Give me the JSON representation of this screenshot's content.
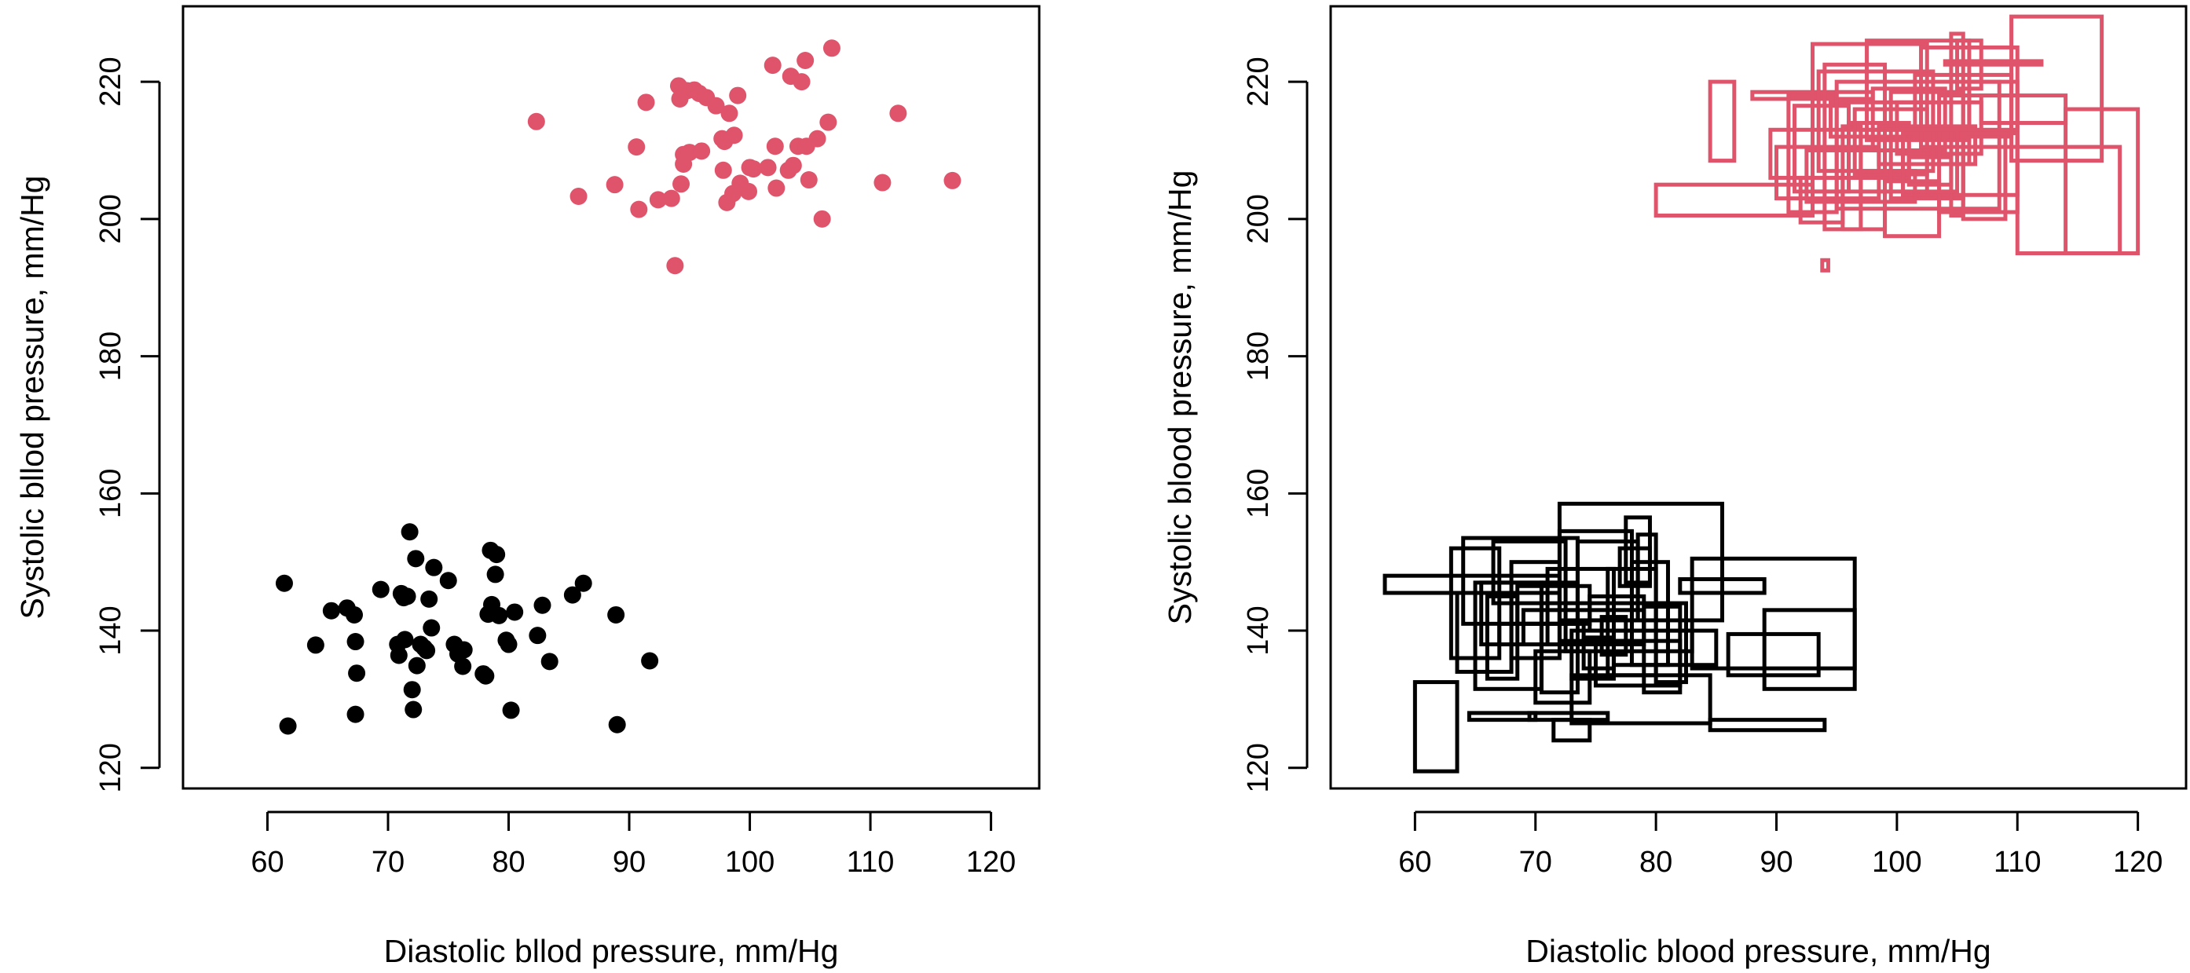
{
  "colors": {
    "black": "#000000",
    "red": "#DF536B"
  },
  "chart_data": [
    {
      "type": "scatter",
      "title": "",
      "xlabel": "Diastolic bllod pressure, mm/Hg",
      "ylabel": "Systolic bllod pressure, mm/Hg",
      "xlim": [
        53,
        124
      ],
      "ylim": [
        117,
        231
      ],
      "xticks": [
        60,
        70,
        80,
        90,
        100,
        110,
        120
      ],
      "yticks": [
        120,
        140,
        160,
        180,
        200,
        220
      ],
      "grid": false,
      "series": [
        {
          "color": "#000000",
          "points": [
            [
              61.4,
              146.9
            ],
            [
              61.7,
              126.1
            ],
            [
              64.0,
              137.9
            ],
            [
              65.3,
              142.9
            ],
            [
              66.6,
              143.3
            ],
            [
              67.2,
              142.3
            ],
            [
              67.3,
              138.4
            ],
            [
              67.4,
              133.8
            ],
            [
              67.3,
              127.8
            ],
            [
              69.4,
              146.0
            ],
            [
              70.8,
              138.0
            ],
            [
              70.9,
              136.4
            ],
            [
              71.1,
              145.4
            ],
            [
              71.3,
              144.8
            ],
            [
              71.4,
              138.7
            ],
            [
              71.6,
              145.0
            ],
            [
              71.8,
              154.4
            ],
            [
              72.0,
              131.4
            ],
            [
              72.1,
              128.5
            ],
            [
              72.3,
              150.5
            ],
            [
              72.4,
              134.9
            ],
            [
              72.7,
              138.0
            ],
            [
              73.0,
              137.5
            ],
            [
              73.2,
              137.1
            ],
            [
              73.4,
              144.6
            ],
            [
              73.6,
              140.4
            ],
            [
              73.8,
              149.2
            ],
            [
              75.0,
              147.3
            ],
            [
              75.5,
              138.0
            ],
            [
              75.8,
              136.6
            ],
            [
              76.2,
              134.8
            ],
            [
              76.3,
              137.2
            ],
            [
              77.9,
              133.7
            ],
            [
              78.1,
              133.4
            ],
            [
              78.3,
              142.4
            ],
            [
              78.5,
              151.7
            ],
            [
              78.6,
              143.8
            ],
            [
              78.9,
              148.2
            ],
            [
              79.0,
              151.1
            ],
            [
              79.2,
              142.2
            ],
            [
              79.8,
              138.6
            ],
            [
              80.0,
              138.0
            ],
            [
              80.2,
              128.4
            ],
            [
              80.5,
              142.7
            ],
            [
              82.4,
              139.3
            ],
            [
              82.8,
              143.7
            ],
            [
              83.4,
              135.5
            ],
            [
              85.3,
              145.2
            ],
            [
              86.2,
              146.9
            ],
            [
              88.9,
              142.3
            ],
            [
              89.0,
              126.3
            ],
            [
              91.7,
              135.6
            ]
          ]
        },
        {
          "color": "#DF536B",
          "points": [
            [
              82.3,
              214.2
            ],
            [
              85.8,
              203.3
            ],
            [
              88.8,
              205.0
            ],
            [
              90.6,
              210.5
            ],
            [
              90.8,
              201.4
            ],
            [
              91.4,
              217.0
            ],
            [
              92.4,
              202.8
            ],
            [
              93.5,
              203.0
            ],
            [
              93.8,
              193.2
            ],
            [
              94.1,
              219.4
            ],
            [
              94.2,
              217.5
            ],
            [
              94.3,
              205.1
            ],
            [
              94.5,
              209.4
            ],
            [
              94.5,
              208.0
            ],
            [
              94.8,
              218.7
            ],
            [
              95.0,
              209.7
            ],
            [
              95.4,
              218.8
            ],
            [
              95.8,
              218.3
            ],
            [
              96.0,
              209.9
            ],
            [
              96.4,
              217.7
            ],
            [
              97.2,
              216.5
            ],
            [
              97.7,
              211.7
            ],
            [
              97.8,
              207.1
            ],
            [
              97.9,
              211.3
            ],
            [
              98.1,
              202.4
            ],
            [
              98.3,
              215.4
            ],
            [
              98.6,
              203.7
            ],
            [
              98.7,
              212.2
            ],
            [
              99.0,
              218.0
            ],
            [
              99.2,
              205.2
            ],
            [
              99.9,
              204.0
            ],
            [
              100.0,
              207.5
            ],
            [
              100.3,
              207.3
            ],
            [
              101.5,
              207.5
            ],
            [
              101.9,
              222.4
            ],
            [
              102.1,
              210.6
            ],
            [
              102.2,
              204.5
            ],
            [
              103.2,
              207.1
            ],
            [
              103.4,
              220.8
            ],
            [
              103.6,
              207.8
            ],
            [
              104.0,
              210.6
            ],
            [
              104.3,
              220.0
            ],
            [
              104.6,
              223.1
            ],
            [
              104.7,
              210.6
            ],
            [
              104.9,
              205.7
            ],
            [
              105.6,
              211.7
            ],
            [
              106.0,
              200.0
            ],
            [
              106.5,
              214.1
            ],
            [
              106.8,
              224.9
            ],
            [
              111.0,
              205.3
            ],
            [
              112.3,
              215.4
            ],
            [
              116.8,
              205.6
            ]
          ]
        }
      ]
    },
    {
      "type": "scatter",
      "title": "",
      "xlabel": "Diastolic blood pressure, mm/Hg",
      "ylabel": "Systolic blood pressure, mm/Hg",
      "xlim": [
        53,
        124
      ],
      "ylim": [
        117,
        231
      ],
      "xticks": [
        60,
        70,
        80,
        90,
        100,
        110,
        120
      ],
      "yticks": [
        120,
        140,
        160,
        180,
        200,
        220
      ],
      "grid": false,
      "marker": "rectangle",
      "series": [
        {
          "color": "#000000",
          "rects": [
            [
              57.5,
              148.0,
              72.0,
              145.5
            ],
            [
              60.0,
              132.5,
              63.5,
              119.5
            ],
            [
              63.0,
              152.0,
              67.0,
              136.0
            ],
            [
              63.5,
              145.5,
              68.0,
              134.0
            ],
            [
              64.0,
              153.5,
              73.5,
              141.0
            ],
            [
              64.5,
              128.0,
              70.0,
              127.0
            ],
            [
              65.0,
              147.0,
              70.5,
              131.5
            ],
            [
              65.5,
              147.0,
              72.0,
              138.0
            ],
            [
              66.0,
              145.0,
              68.5,
              133.0
            ],
            [
              66.5,
              153.0,
              72.5,
              144.0
            ],
            [
              67.0,
              141.0,
              74.0,
              138.0
            ],
            [
              68.0,
              150.0,
              72.0,
              136.0
            ],
            [
              68.5,
              146.5,
              74.5,
              141.0
            ],
            [
              69.0,
              143.0,
              79.0,
              138.0
            ],
            [
              69.5,
              128.0,
              76.0,
              127.0
            ],
            [
              70.0,
              137.0,
              74.5,
              129.5
            ],
            [
              70.5,
              147.0,
              73.5,
              131.0
            ],
            [
              71.0,
              149.0,
              76.5,
              138.0
            ],
            [
              71.5,
              127.0,
              74.5,
              124.0
            ],
            [
              72.0,
              154.5,
              78.0,
              138.5
            ],
            [
              72.5,
              144.0,
              81.0,
              137.0
            ],
            [
              73.0,
              140.0,
              76.5,
              133.0
            ],
            [
              73.5,
              153.0,
              78.5,
              141.5
            ],
            [
              74.0,
              139.0,
              76.5,
              134.5
            ],
            [
              74.5,
              145.0,
              79.0,
              140.0
            ],
            [
              75.0,
              138.5,
              82.0,
              132.0
            ],
            [
              75.5,
              142.0,
              77.5,
              136.5
            ],
            [
              72.0,
              158.5,
              85.5,
              141.5
            ],
            [
              73.0,
              126.5,
              84.5,
              133.5
            ],
            [
              76.0,
              149.0,
              80.0,
              133.5
            ],
            [
              76.5,
              140.0,
              85.0,
              135.0
            ],
            [
              77.0,
              152.0,
              79.5,
              146.5
            ],
            [
              77.5,
              156.5,
              79.5,
              147.0
            ],
            [
              78.0,
              150.0,
              81.0,
              135.0
            ],
            [
              78.5,
              154.0,
              80.0,
              141.5
            ],
            [
              79.0,
              143.5,
              82.0,
              131.0
            ],
            [
              80.0,
              144.0,
              82.5,
              132.5
            ],
            [
              81.0,
              140.0,
              83.0,
              137.0
            ],
            [
              82.0,
              147.5,
              89.0,
              145.5
            ],
            [
              83.0,
              150.5,
              96.5,
              134.5
            ],
            [
              84.5,
              127.0,
              94.0,
              125.5
            ],
            [
              86.0,
              139.5,
              93.5,
              133.5
            ],
            [
              89.0,
              143.0,
              96.5,
              131.5
            ]
          ]
        },
        {
          "color": "#DF536B",
          "rects": [
            [
              80.0,
              205.0,
              93.0,
              200.5
            ],
            [
              84.5,
              220.0,
              86.5,
              208.5
            ],
            [
              88.0,
              218.5,
              98.0,
              217.5
            ],
            [
              89.5,
              213.0,
              101.0,
              206.0
            ],
            [
              90.0,
              210.5,
              98.5,
              203.0
            ],
            [
              91.0,
              218.0,
              95.0,
              201.0
            ],
            [
              91.5,
              216.5,
              96.0,
              204.0
            ],
            [
              92.0,
              206.0,
              95.5,
              199.5
            ],
            [
              92.5,
              210.0,
              100.5,
              202.5
            ],
            [
              93.0,
              225.5,
              102.5,
              204.0
            ],
            [
              93.5,
              221.5,
              103.0,
              207.0
            ],
            [
              93.8,
              194.0,
              94.3,
              192.5
            ],
            [
              94.0,
              222.5,
              99.0,
              198.5
            ],
            [
              94.5,
              217.0,
              103.0,
              212.0
            ],
            [
              95.0,
              220.0,
              108.5,
              201.5
            ],
            [
              95.5,
              213.5,
              97.0,
              198.5
            ],
            [
              96.0,
              214.0,
              101.0,
              206.0
            ],
            [
              96.5,
              216.0,
              102.5,
              206.5
            ],
            [
              97.0,
              207.0,
              101.5,
              202.5
            ],
            [
              97.5,
              226.0,
              106.0,
              211.5
            ],
            [
              98.0,
              219.0,
              104.0,
              210.0
            ],
            [
              98.5,
              213.5,
              106.5,
              208.0
            ],
            [
              99.0,
              205.5,
              103.5,
              197.5
            ],
            [
              99.5,
              218.5,
              105.5,
              203.0
            ],
            [
              100.0,
              217.0,
              107.0,
              209.5
            ],
            [
              100.5,
              212.5,
              110.0,
              203.5
            ],
            [
              101.0,
              209.0,
              104.5,
              205.0
            ],
            [
              101.5,
              221.0,
              109.5,
              212.0
            ],
            [
              102.0,
              225.0,
              110.0,
              210.5
            ],
            [
              103.0,
              213.0,
              106.0,
              208.0
            ],
            [
              103.5,
              218.0,
              110.0,
              201.0
            ],
            [
              104.0,
              223.0,
              112.0,
              222.5
            ],
            [
              104.5,
              227.0,
              105.5,
              200.5
            ],
            [
              105.0,
              226.0,
              107.0,
              219.0
            ],
            [
              105.5,
              212.5,
              109.0,
              200.0
            ],
            [
              106.0,
              220.0,
              110.0,
              213.0
            ],
            [
              107.0,
              218.0,
              114.0,
              214.0
            ],
            [
              109.5,
              229.5,
              117.0,
              208.5
            ],
            [
              110.0,
              210.5,
              118.5,
              195.0
            ],
            [
              114.0,
              216.0,
              120.0,
              195.0
            ],
            [
              97.0,
              213.0,
              105.0,
              204.0
            ]
          ]
        }
      ]
    }
  ]
}
